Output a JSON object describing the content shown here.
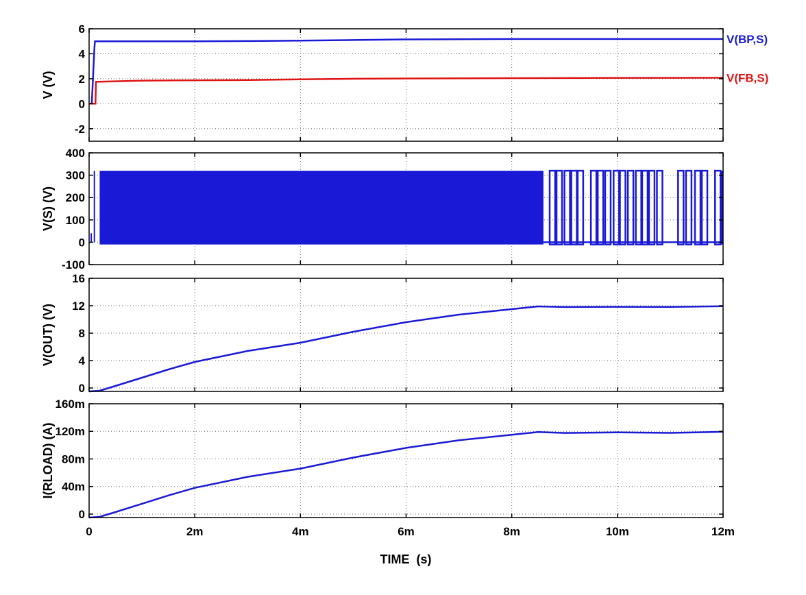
{
  "chart_data": {
    "type": "line",
    "xlabel": "TIME  (s)",
    "x_ticks": [
      "0",
      "2m",
      "4m",
      "6m",
      "8m",
      "10m",
      "12m"
    ],
    "xlim": [
      0,
      0.012
    ],
    "colors": {
      "blue": "#1a1ad6",
      "red": "#e01414",
      "grid": "#666666"
    },
    "panels": [
      {
        "ylabel": "V  (V)",
        "ylim": [
          -3,
          6
        ],
        "y_ticks": [
          {
            "v": 6,
            "label": "6"
          },
          {
            "v": 4,
            "label": "4"
          },
          {
            "v": 2,
            "label": "2"
          },
          {
            "v": 0,
            "label": "0"
          },
          {
            "v": -2,
            "label": "-2"
          }
        ],
        "series": [
          {
            "name": "V(BP,S)",
            "color": "#1a1ad6",
            "x": [
              0,
              5e-05,
              0.0001,
              0.00011,
              0.001,
              0.002,
              0.003,
              0.004,
              0.005,
              0.006,
              0.008,
              0.01,
              0.012
            ],
            "y": [
              0,
              0,
              4.4,
              5.0,
              5.0,
              5.0,
              5.02,
              5.05,
              5.1,
              5.15,
              5.18,
              5.18,
              5.18
            ]
          },
          {
            "name": "V(FB,S)",
            "color": "#e01414",
            "x": [
              0,
              0.00012,
              0.00013,
              0.001,
              0.002,
              0.003,
              0.004,
              0.005,
              0.006,
              0.008,
              0.01,
              0.012
            ],
            "y": [
              0,
              0,
              1.75,
              1.85,
              1.88,
              1.9,
              1.95,
              2.0,
              2.02,
              2.05,
              2.07,
              2.08
            ]
          }
        ]
      },
      {
        "ylabel": "V(S)  (V)",
        "ylim": [
          -100,
          400
        ],
        "y_ticks": [
          {
            "v": 400,
            "label": "400"
          },
          {
            "v": 300,
            "label": "300"
          },
          {
            "v": 200,
            "label": "200"
          },
          {
            "v": 100,
            "label": "100"
          },
          {
            "v": 0,
            "label": "0"
          },
          {
            "v": -100,
            "label": "-100"
          }
        ],
        "switching": {
          "color": "#1a1ad6",
          "high": 320,
          "low": -10,
          "dense_from": 0.0002,
          "dense_until": 0.0086,
          "bursts": [
            0.00877,
            0.0089,
            0.00905,
            0.00918,
            0.0093,
            0.00955,
            0.00968,
            0.00982,
            0.00998,
            0.0101,
            0.01025,
            0.0104,
            0.01052,
            0.01065,
            0.0108,
            0.0112,
            0.01135,
            0.01152,
            0.01165,
            0.0119
          ]
        }
      },
      {
        "ylabel": "V(OUT)  (V)",
        "ylim": [
          -0.5,
          16
        ],
        "y_ticks": [
          {
            "v": 16,
            "label": "16"
          },
          {
            "v": 12,
            "label": "12"
          },
          {
            "v": 8,
            "label": "8"
          },
          {
            "v": 4,
            "label": "4"
          },
          {
            "v": 0,
            "label": "0"
          }
        ],
        "series": [
          {
            "color": "#1a1ad6",
            "x": [
              0,
              0.0002,
              0.0005,
              0.001,
              0.0015,
              0.002,
              0.003,
              0.004,
              0.005,
              0.006,
              0.007,
              0.008,
              0.0085,
              0.009,
              0.01,
              0.011,
              0.012
            ],
            "y": [
              -0.5,
              -0.4,
              0.3,
              1.5,
              2.7,
              3.8,
              5.4,
              6.6,
              8.2,
              9.6,
              10.7,
              11.5,
              11.9,
              11.85,
              11.9,
              11.85,
              11.9
            ]
          }
        ]
      },
      {
        "ylabel": "I(RLOAD)  (A)",
        "ylim": [
          -0.005,
          0.16
        ],
        "y_ticks": [
          {
            "v": 0.16,
            "label": "160m"
          },
          {
            "v": 0.12,
            "label": "120m"
          },
          {
            "v": 0.08,
            "label": "80m"
          },
          {
            "v": 0.04,
            "label": "40m"
          },
          {
            "v": 0,
            "label": "0"
          }
        ],
        "series": [
          {
            "color": "#1a1ad6",
            "x": [
              0,
              0.0002,
              0.0005,
              0.001,
              0.0015,
              0.002,
              0.003,
              0.004,
              0.005,
              0.006,
              0.007,
              0.008,
              0.0085,
              0.009,
              0.01,
              0.011,
              0.012
            ],
            "y": [
              -0.005,
              -0.004,
              0.003,
              0.015,
              0.027,
              0.038,
              0.054,
              0.066,
              0.082,
              0.096,
              0.107,
              0.115,
              0.119,
              0.118,
              0.119,
              0.118,
              0.119
            ]
          }
        ]
      }
    ]
  }
}
